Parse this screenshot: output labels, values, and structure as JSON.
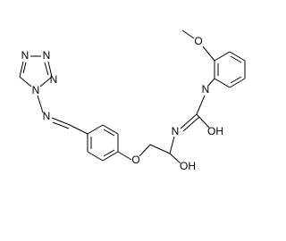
{
  "atoms": [
    {
      "label": "O"
    },
    {
      "label": "N"
    },
    {
      "label": "OH"
    },
    {
      "label": "N"
    },
    {
      "label": "OH"
    },
    {
      "label": "O"
    },
    {
      "label": "N"
    },
    {
      "label": "N"
    },
    {
      "label": "N"
    },
    {
      "label": "N"
    },
    {
      "label": "N"
    }
  ]
}
